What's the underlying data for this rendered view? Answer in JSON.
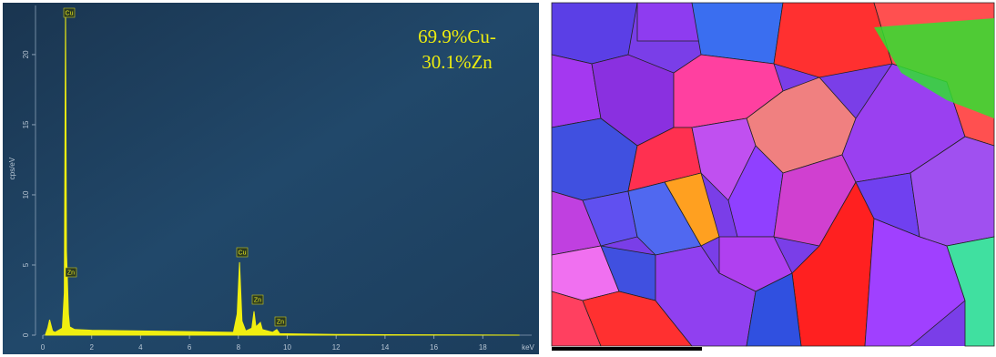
{
  "chart_data": {
    "type": "area",
    "annotation": [
      "69.9%Cu-",
      "30.1%Zn"
    ],
    "ylabel": "cps/eV",
    "xunit": "keV",
    "color": "#f0ee10",
    "x": [
      0.1,
      0.2,
      0.28,
      0.4,
      0.5,
      0.8,
      0.88,
      0.93,
      0.97,
      1.01,
      1.05,
      1.1,
      1.3,
      2,
      4,
      6,
      7.8,
      7.95,
      8.05,
      8.15,
      8.3,
      8.55,
      8.64,
      8.72,
      8.9,
      8.98,
      9.4,
      9.57,
      9.7,
      10,
      12,
      14,
      19.5
    ],
    "values": [
      0,
      0.5,
      1.1,
      0.3,
      0.2,
      0.5,
      3,
      23.1,
      6,
      3.8,
      1.5,
      0.6,
      0.4,
      0.35,
      0.3,
      0.25,
      0.2,
      1.5,
      5.2,
      1,
      0.3,
      0.5,
      1.7,
      0.6,
      0.9,
      0.4,
      0.2,
      0.4,
      0.1,
      0.1,
      0.05,
      0.03,
      0
    ],
    "peak_labels": [
      "Cu",
      "Zn",
      "Cu",
      "Zn",
      "Zn"
    ],
    "xlim": [
      0,
      20
    ],
    "ylim": [
      0,
      23.5
    ],
    "xticks": [
      0,
      2,
      4,
      6,
      8,
      10,
      12,
      14,
      16,
      18
    ],
    "yticks": [
      0,
      5,
      10,
      15,
      20
    ]
  }
}
